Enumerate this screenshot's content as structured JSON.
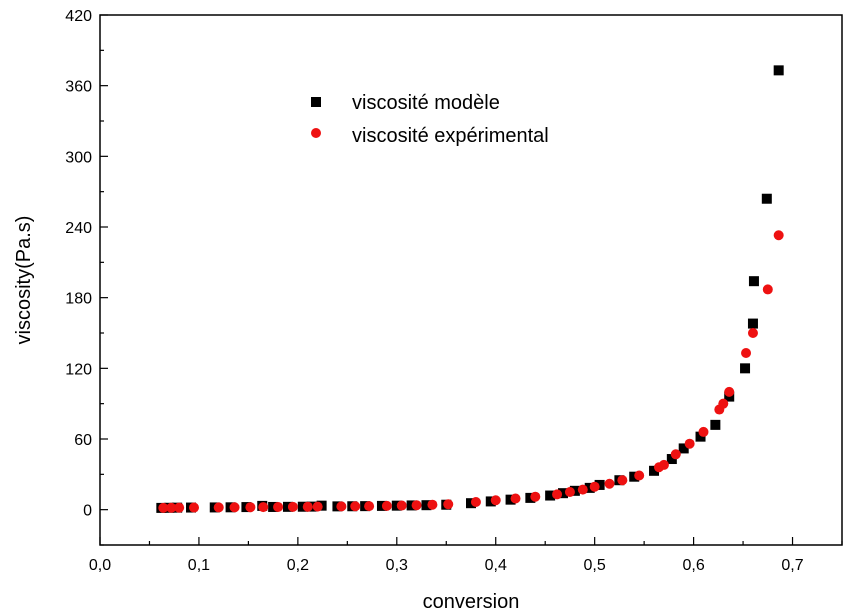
{
  "chart_data": {
    "type": "scatter",
    "xlabel": "conversion",
    "ylabel": "viscosity(Pa.s)",
    "xlim": [
      0.0,
      0.75
    ],
    "ylim": [
      -30,
      420
    ],
    "x_ticks": [
      0.0,
      0.1,
      0.2,
      0.3,
      0.4,
      0.5,
      0.6,
      0.7
    ],
    "x_tick_labels": [
      "0,0",
      "0,1",
      "0,2",
      "0,3",
      "0,4",
      "0,5",
      "0,6",
      "0,7"
    ],
    "y_ticks": [
      0,
      60,
      120,
      180,
      240,
      300,
      360,
      420
    ],
    "y_tick_labels": [
      "0",
      "60",
      "120",
      "180",
      "240",
      "300",
      "360",
      "420"
    ],
    "legend_position": "top-center",
    "series": [
      {
        "name": "viscosité modèle",
        "marker": "square",
        "color": "#000000",
        "points": [
          [
            0.062,
            1.5
          ],
          [
            0.07,
            1.6
          ],
          [
            0.078,
            1.7
          ],
          [
            0.092,
            1.8
          ],
          [
            0.116,
            1.9
          ],
          [
            0.132,
            2.0
          ],
          [
            0.148,
            2.2
          ],
          [
            0.164,
            3.2
          ],
          [
            0.175,
            2.3
          ],
          [
            0.19,
            2.4
          ],
          [
            0.205,
            2.5
          ],
          [
            0.214,
            2.6
          ],
          [
            0.224,
            3.4
          ],
          [
            0.24,
            2.8
          ],
          [
            0.255,
            2.9
          ],
          [
            0.268,
            3.0
          ],
          [
            0.285,
            3.2
          ],
          [
            0.3,
            3.4
          ],
          [
            0.315,
            3.6
          ],
          [
            0.33,
            3.8
          ],
          [
            0.35,
            4.2
          ],
          [
            0.375,
            5.5
          ],
          [
            0.395,
            7.0
          ],
          [
            0.415,
            8.5
          ],
          [
            0.435,
            10.0
          ],
          [
            0.455,
            12.0
          ],
          [
            0.468,
            14.0
          ],
          [
            0.48,
            16.0
          ],
          [
            0.495,
            18.5
          ],
          [
            0.505,
            21.0
          ],
          [
            0.525,
            25.0
          ],
          [
            0.54,
            28.0
          ],
          [
            0.56,
            33.0
          ],
          [
            0.578,
            43.0
          ],
          [
            0.59,
            52.0
          ],
          [
            0.607,
            62.0
          ],
          [
            0.622,
            72.0
          ],
          [
            0.636,
            96.0
          ],
          [
            0.652,
            120.0
          ],
          [
            0.66,
            158.0
          ],
          [
            0.661,
            194.0
          ],
          [
            0.674,
            264.0
          ],
          [
            0.686,
            373.0
          ]
        ]
      },
      {
        "name": "viscosité expérimental",
        "marker": "circle",
        "color": "#ee1111",
        "points": [
          [
            0.064,
            1.5
          ],
          [
            0.072,
            1.6
          ],
          [
            0.08,
            1.7
          ],
          [
            0.095,
            1.8
          ],
          [
            0.12,
            1.9
          ],
          [
            0.136,
            2.0
          ],
          [
            0.152,
            2.1
          ],
          [
            0.165,
            2.2
          ],
          [
            0.18,
            2.3
          ],
          [
            0.195,
            2.4
          ],
          [
            0.21,
            2.5
          ],
          [
            0.22,
            2.6
          ],
          [
            0.244,
            2.8
          ],
          [
            0.258,
            2.9
          ],
          [
            0.272,
            3.0
          ],
          [
            0.29,
            3.2
          ],
          [
            0.305,
            3.5
          ],
          [
            0.32,
            3.8
          ],
          [
            0.336,
            4.2
          ],
          [
            0.352,
            4.6
          ],
          [
            0.38,
            6.5
          ],
          [
            0.4,
            8.0
          ],
          [
            0.42,
            9.5
          ],
          [
            0.44,
            11.0
          ],
          [
            0.462,
            13.0
          ],
          [
            0.475,
            15.0
          ],
          [
            0.488,
            17.0
          ],
          [
            0.5,
            19.5
          ],
          [
            0.515,
            22.0
          ],
          [
            0.528,
            25.0
          ],
          [
            0.545,
            29.0
          ],
          [
            0.565,
            36.0
          ],
          [
            0.57,
            38.0
          ],
          [
            0.582,
            47.0
          ],
          [
            0.596,
            56.0
          ],
          [
            0.61,
            66.0
          ],
          [
            0.626,
            85.0
          ],
          [
            0.63,
            90.0
          ],
          [
            0.636,
            100.0
          ],
          [
            0.653,
            133.0
          ],
          [
            0.66,
            150.0
          ],
          [
            0.675,
            187.0
          ],
          [
            0.686,
            233.0
          ]
        ]
      }
    ]
  }
}
